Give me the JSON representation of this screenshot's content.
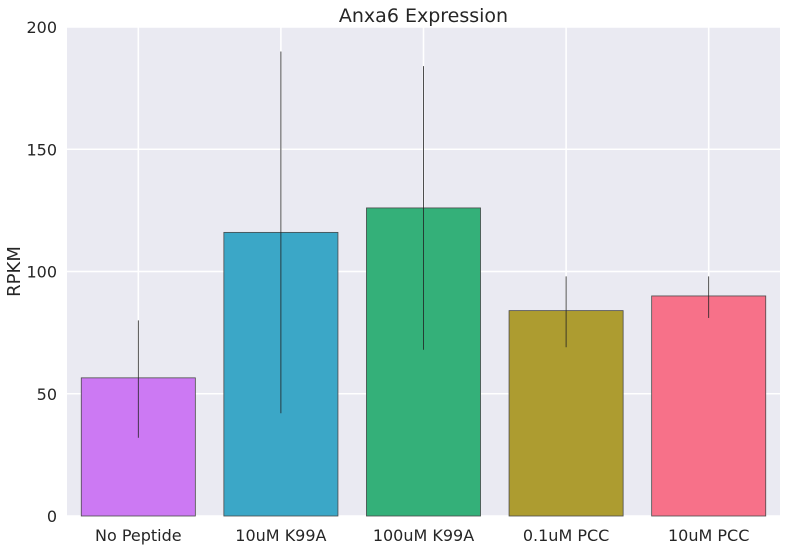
{
  "chart_data": {
    "type": "bar",
    "title": "Anxa6 Expression",
    "xlabel": "",
    "ylabel": "RPKM",
    "categories": [
      "No Peptide",
      "10uM K99A",
      "100uM K99A",
      "0.1uM PCC",
      "10uM PCC"
    ],
    "values": [
      56.5,
      116,
      126,
      84,
      90
    ],
    "error_low": [
      32,
      42,
      68,
      69,
      81
    ],
    "error_high": [
      80,
      190,
      184,
      98,
      98
    ],
    "colors": [
      "#cc79f3",
      "#3ba7c7",
      "#34b079",
      "#ad9c30",
      "#f77189"
    ],
    "ylim": [
      0,
      200
    ],
    "yticks": [
      0,
      50,
      100,
      150,
      200
    ],
    "grid": true,
    "background": "#eaeaf2"
  }
}
